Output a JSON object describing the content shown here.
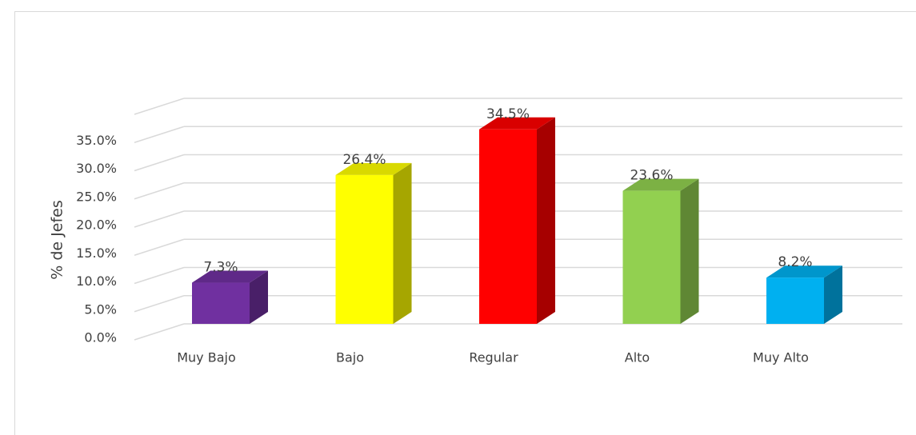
{
  "chart_data": {
    "type": "bar3d",
    "y_label": "% de Jefes",
    "categories": [
      "Muy Bajo",
      "Bajo",
      "Regular",
      "Alto",
      "Muy Alto"
    ],
    "values": [
      7.3,
      26.4,
      34.5,
      23.6,
      8.2
    ],
    "value_labels": [
      "7.3%",
      "26.4%",
      "34.5%",
      "23.6%",
      "8.2%"
    ],
    "colors": [
      "#7030a0",
      "#ffff00",
      "#ff0000",
      "#92d050",
      "#00b0f0"
    ],
    "ylim": [
      0,
      40
    ],
    "yticks": [
      {
        "value": 0,
        "label": "0.0%"
      },
      {
        "value": 5,
        "label": "5.0%"
      },
      {
        "value": 10,
        "label": "10.0%"
      },
      {
        "value": 15,
        "label": "15.0%"
      },
      {
        "value": 20,
        "label": "20.0%"
      },
      {
        "value": 25,
        "label": "25.0%"
      },
      {
        "value": 30,
        "label": "30.0%"
      },
      {
        "value": 35,
        "label": "35.0%"
      }
    ],
    "grid": true
  }
}
